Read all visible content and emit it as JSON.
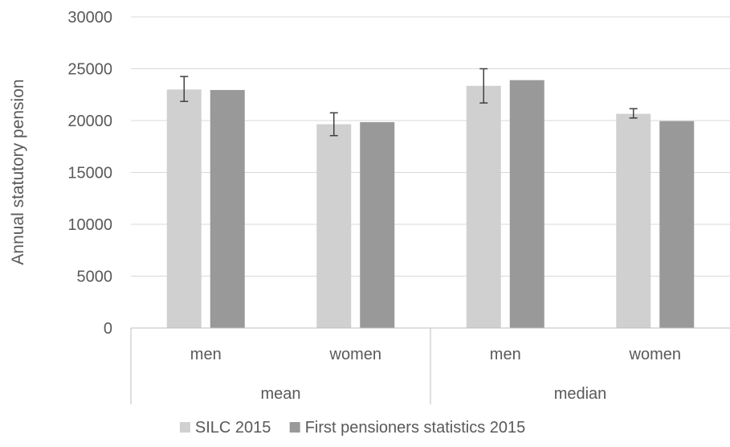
{
  "chart_data": {
    "type": "bar",
    "ylabel": "Annual statutory  pension",
    "ylim": [
      0,
      30000
    ],
    "yticks": [
      0,
      5000,
      10000,
      15000,
      20000,
      25000,
      30000
    ],
    "grid": true,
    "legend_position": "bottom",
    "groups": [
      {
        "label": "mean",
        "categories": [
          "men",
          "women"
        ]
      },
      {
        "label": "median",
        "categories": [
          "men",
          "women"
        ]
      }
    ],
    "categories": [
      "men",
      "women",
      "men",
      "women"
    ],
    "series": [
      {
        "name": "SILC 2015",
        "color": "#d0d0d0",
        "values": [
          23000,
          19650,
          23350,
          20650
        ],
        "error_low": [
          21850,
          18550,
          21700,
          20250
        ],
        "error_high": [
          24250,
          20750,
          25000,
          21150
        ]
      },
      {
        "name": "First pensioners statistics 2015",
        "color": "#999999",
        "values": [
          22950,
          19850,
          23900,
          19950
        ]
      }
    ]
  }
}
